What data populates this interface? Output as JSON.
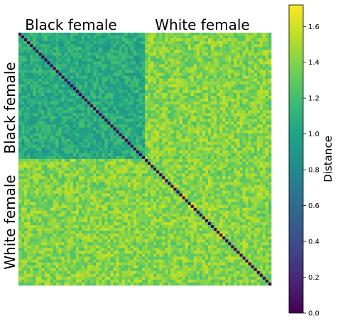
{
  "chart_data": {
    "type": "heatmap",
    "title": "",
    "matrix_size": 88,
    "groups": [
      {
        "name": "Black female",
        "start": 0,
        "count": 44
      },
      {
        "name": "White female",
        "start": 44,
        "count": 44
      }
    ],
    "block_mean_distance": {
      "within_black_female": 1.05,
      "within_white_female": 1.4,
      "between_groups": 1.4
    },
    "diagonal_distance": 0.0,
    "colorbar": {
      "label": "Distance",
      "colormap": "viridis",
      "range": [
        0.0,
        1.72
      ],
      "ticks": [
        "0.0",
        "0.2",
        "0.4",
        "0.6",
        "0.8",
        "1.0",
        "1.2",
        "1.4",
        "1.6"
      ]
    }
  }
}
